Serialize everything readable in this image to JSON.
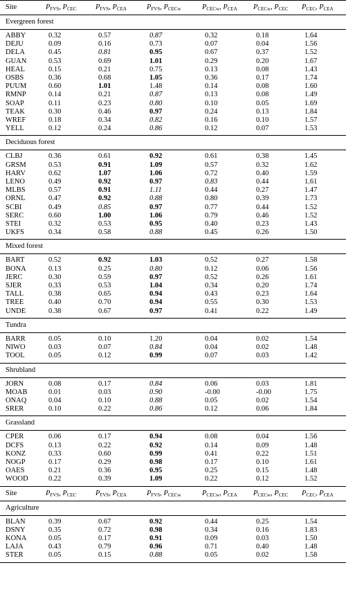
{
  "header": {
    "site": "Site",
    "cols": [
      {
        "a": "FVS",
        "b": "CEC"
      },
      {
        "a": "FVS",
        "b": "CEA"
      },
      {
        "a": "FVS",
        "b": "CECw"
      },
      {
        "a": "CECw",
        "b": "CEA"
      },
      {
        "a": "CECw",
        "b": "CEC"
      },
      {
        "a": "CEC",
        "b": "CEA"
      }
    ]
  },
  "sections": [
    {
      "title": "Evergreen forest",
      "rows": [
        {
          "site": "ABBY",
          "v": [
            "0.32",
            "0.57",
            "0.87",
            "0.32",
            "0.18",
            "1.64"
          ],
          "s": [
            "",
            "",
            "i",
            "",
            "",
            ""
          ]
        },
        {
          "site": "DEJU",
          "v": [
            "0.09",
            "0.16",
            "0.73",
            "0.07",
            "0.04",
            "1.56"
          ],
          "s": [
            "",
            "",
            "",
            "",
            "",
            ""
          ]
        },
        {
          "site": "DELA",
          "v": [
            "0.45",
            "0.81",
            "0.95",
            "0.67",
            "0.37",
            "1.52"
          ],
          "s": [
            "",
            "i",
            "b",
            "",
            "",
            ""
          ]
        },
        {
          "site": "GUAN",
          "v": [
            "0.53",
            "0.69",
            "1.01",
            "0.29",
            "0.20",
            "1.67"
          ],
          "s": [
            "",
            "",
            "b",
            "",
            "",
            ""
          ]
        },
        {
          "site": "HEAL",
          "v": [
            "0.15",
            "0.21",
            "0.75",
            "0.13",
            "0.08",
            "1.43"
          ],
          "s": [
            "",
            "",
            "",
            "",
            "",
            ""
          ]
        },
        {
          "site": "OSBS",
          "v": [
            "0.36",
            "0.68",
            "1.05",
            "0.36",
            "0.17",
            "1.74"
          ],
          "s": [
            "",
            "",
            "b",
            "",
            "",
            ""
          ]
        },
        {
          "site": "PUUM",
          "v": [
            "0.60",
            "1.01",
            "1.48",
            "0.14",
            "0.08",
            "1.60"
          ],
          "s": [
            "",
            "b",
            "",
            "",
            "",
            ""
          ]
        },
        {
          "site": "RMNP",
          "v": [
            "0.14",
            "0.21",
            "0.87",
            "0.13",
            "0.08",
            "1.49"
          ],
          "s": [
            "",
            "",
            "i",
            "",
            "",
            ""
          ]
        },
        {
          "site": "SOAP",
          "v": [
            "0.11",
            "0.23",
            "0.80",
            "0.10",
            "0.05",
            "1.69"
          ],
          "s": [
            "",
            "",
            "i",
            "",
            "",
            ""
          ]
        },
        {
          "site": "TEAK",
          "v": [
            "0.30",
            "0.46",
            "0.97",
            "0.24",
            "0.13",
            "1.84"
          ],
          "s": [
            "",
            "",
            "b",
            "",
            "",
            ""
          ]
        },
        {
          "site": "WREF",
          "v": [
            "0.18",
            "0.34",
            "0.82",
            "0.16",
            "0.10",
            "1.57"
          ],
          "s": [
            "",
            "",
            "i",
            "",
            "",
            ""
          ]
        },
        {
          "site": "YELL",
          "v": [
            "0.12",
            "0.24",
            "0.86",
            "0.12",
            "0.07",
            "1.53"
          ],
          "s": [
            "",
            "",
            "i",
            "",
            "",
            ""
          ]
        }
      ]
    },
    {
      "title": "Deciduous forest",
      "rows": [
        {
          "site": "CLBJ",
          "v": [
            "0.36",
            "0.61",
            "0.92",
            "0.61",
            "0.38",
            "1.45"
          ],
          "s": [
            "",
            "",
            "b",
            "",
            "",
            ""
          ]
        },
        {
          "site": "GRSM",
          "v": [
            "0.53",
            "0.91",
            "1.09",
            "0.57",
            "0.32",
            "1.62"
          ],
          "s": [
            "",
            "b",
            "b",
            "",
            "",
            ""
          ]
        },
        {
          "site": "HARV",
          "v": [
            "0.62",
            "1.07",
            "1.06",
            "0.72",
            "0.40",
            "1.59"
          ],
          "s": [
            "",
            "b",
            "b",
            "",
            "",
            ""
          ]
        },
        {
          "site": "LENO",
          "v": [
            "0.49",
            "0.92",
            "0.97",
            "0.83",
            "0.44",
            "1.61"
          ],
          "s": [
            "",
            "b",
            "b",
            "i",
            "",
            ""
          ]
        },
        {
          "site": "MLBS",
          "v": [
            "0.57",
            "0.91",
            "1.11",
            "0.44",
            "0.27",
            "1.47"
          ],
          "s": [
            "",
            "b",
            "i",
            "",
            "",
            ""
          ]
        },
        {
          "site": "ORNL",
          "v": [
            "0.47",
            "0.92",
            "0.88",
            "0.80",
            "0.39",
            "1.73"
          ],
          "s": [
            "",
            "b",
            "i",
            "",
            "",
            ""
          ]
        },
        {
          "site": "SCBI",
          "v": [
            "0.49",
            "0.85",
            "0.97",
            "0.77",
            "0.44",
            "1.52"
          ],
          "s": [
            "",
            "i",
            "b",
            "",
            "",
            ""
          ]
        },
        {
          "site": "SERC",
          "v": [
            "0.60",
            "1.00",
            "1.06",
            "0.79",
            "0.46",
            "1.52"
          ],
          "s": [
            "",
            "b",
            "b",
            "",
            "",
            ""
          ]
        },
        {
          "site": "STEI",
          "v": [
            "0.32",
            "0.53",
            "0.95",
            "0.40",
            "0.23",
            "1.43"
          ],
          "s": [
            "",
            "",
            "b",
            "",
            "",
            ""
          ]
        },
        {
          "site": "UKFS",
          "v": [
            "0.34",
            "0.58",
            "0.88",
            "0.45",
            "0.26",
            "1.50"
          ],
          "s": [
            "",
            "",
            "i",
            "",
            "",
            ""
          ]
        }
      ]
    },
    {
      "title": "Mixed forest",
      "rows": [
        {
          "site": "BART",
          "v": [
            "0.52",
            "0.92",
            "1.03",
            "0.52",
            "0.27",
            "1.58"
          ],
          "s": [
            "",
            "b",
            "b",
            "",
            "",
            ""
          ]
        },
        {
          "site": "BONA",
          "v": [
            "0.13",
            "0.25",
            "0.80",
            "0.12",
            "0.06",
            "1.56"
          ],
          "s": [
            "",
            "",
            "i",
            "",
            "",
            ""
          ]
        },
        {
          "site": "JERC",
          "v": [
            "0.30",
            "0.59",
            "0.97",
            "0.52",
            "0.26",
            "1.61"
          ],
          "s": [
            "",
            "",
            "b",
            "",
            "",
            ""
          ]
        },
        {
          "site": "SJER",
          "v": [
            "0.33",
            "0.53",
            "1.04",
            "0.34",
            "0.20",
            "1.74"
          ],
          "s": [
            "",
            "",
            "b",
            "",
            "",
            ""
          ]
        },
        {
          "site": "TALL",
          "v": [
            "0.38",
            "0.65",
            "0.94",
            "0.43",
            "0.23",
            "1.64"
          ],
          "s": [
            "",
            "",
            "b",
            "",
            "",
            ""
          ]
        },
        {
          "site": "TREE",
          "v": [
            "0.40",
            "0.70",
            "0.94",
            "0.55",
            "0.30",
            "1.53"
          ],
          "s": [
            "",
            "",
            "b",
            "",
            "",
            ""
          ]
        },
        {
          "site": "UNDE",
          "v": [
            "0.38",
            "0.67",
            "0.97",
            "0.41",
            "0.22",
            "1.49"
          ],
          "s": [
            "",
            "",
            "b",
            "",
            "",
            ""
          ]
        }
      ]
    },
    {
      "title": "Tundra",
      "rows": [
        {
          "site": "BARR",
          "v": [
            "0.05",
            "0.10",
            "1.20",
            "0.04",
            "0.02",
            "1.54"
          ],
          "s": [
            "",
            "",
            "",
            "",
            "",
            ""
          ]
        },
        {
          "site": "NIWO",
          "v": [
            "0.03",
            "0.07",
            "0.84",
            "0.04",
            "0.02",
            "1.48"
          ],
          "s": [
            "",
            "",
            "i",
            "",
            "",
            ""
          ]
        },
        {
          "site": "TOOL",
          "v": [
            "0.05",
            "0.12",
            "0.99",
            "0.07",
            "0.03",
            "1.42"
          ],
          "s": [
            "",
            "",
            "b",
            "",
            "",
            ""
          ]
        }
      ]
    },
    {
      "title": "Shrubland",
      "rows": [
        {
          "site": "JORN",
          "v": [
            "0.08",
            "0.17",
            "0.84",
            "0.06",
            "0.03",
            "1.81"
          ],
          "s": [
            "",
            "",
            "i",
            "",
            "",
            ""
          ]
        },
        {
          "site": "MOAB",
          "v": [
            "0.01",
            "0.03",
            "0.90",
            "-0.00",
            "-0.00",
            "1.75"
          ],
          "s": [
            "",
            "",
            "i",
            "",
            "",
            ""
          ]
        },
        {
          "site": "ONAQ",
          "v": [
            "0.04",
            "0.10",
            "0.88",
            "0.05",
            "0.02",
            "1.54"
          ],
          "s": [
            "",
            "",
            "i",
            "",
            "",
            ""
          ]
        },
        {
          "site": "SRER",
          "v": [
            "0.10",
            "0.22",
            "0.86",
            "0.12",
            "0.06",
            "1.84"
          ],
          "s": [
            "",
            "",
            "i",
            "",
            "",
            ""
          ]
        }
      ]
    },
    {
      "title": "Grassland",
      "rows": [
        {
          "site": "CPER",
          "v": [
            "0.06",
            "0.17",
            "0.94",
            "0.08",
            "0.04",
            "1.56"
          ],
          "s": [
            "",
            "",
            "b",
            "",
            "",
            ""
          ]
        },
        {
          "site": "DCFS",
          "v": [
            "0.13",
            "0.22",
            "0.92",
            "0.14",
            "0.09",
            "1.48"
          ],
          "s": [
            "",
            "",
            "b",
            "",
            "",
            ""
          ]
        },
        {
          "site": "KONZ",
          "v": [
            "0.33",
            "0.60",
            "0.99",
            "0.41",
            "0.22",
            "1.51"
          ],
          "s": [
            "",
            "",
            "b",
            "",
            "",
            ""
          ]
        },
        {
          "site": "NOGP",
          "v": [
            "0.17",
            "0.29",
            "0.98",
            "0.17",
            "0.10",
            "1.61"
          ],
          "s": [
            "",
            "",
            "b",
            "",
            "",
            ""
          ]
        },
        {
          "site": "OAES",
          "v": [
            "0.21",
            "0.36",
            "0.95",
            "0.25",
            "0.15",
            "1.48"
          ],
          "s": [
            "",
            "",
            "b",
            "",
            "",
            ""
          ]
        },
        {
          "site": "WOOD",
          "v": [
            "0.22",
            "0.39",
            "1.09",
            "0.22",
            "0.12",
            "1.52"
          ],
          "s": [
            "",
            "",
            "b",
            "",
            "",
            ""
          ]
        }
      ]
    }
  ],
  "sections2": [
    {
      "title": "Agriculture",
      "rows": [
        {
          "site": "BLAN",
          "v": [
            "0.39",
            "0.67",
            "0.92",
            "0.44",
            "0.25",
            "1.54"
          ],
          "s": [
            "",
            "",
            "b",
            "",
            "",
            ""
          ]
        },
        {
          "site": "DSNY",
          "v": [
            "0.35",
            "0.72",
            "0.98",
            "0.34",
            "0.16",
            "1.83"
          ],
          "s": [
            "",
            "",
            "b",
            "",
            "",
            ""
          ]
        },
        {
          "site": "KONA",
          "v": [
            "0.05",
            "0.17",
            "0.91",
            "0.09",
            "0.03",
            "1.50"
          ],
          "s": [
            "",
            "",
            "b",
            "",
            "",
            ""
          ]
        },
        {
          "site": "LAJA",
          "v": [
            "0.43",
            "0.79",
            "0.96",
            "0.71",
            "0.40",
            "1.48"
          ],
          "s": [
            "",
            "",
            "b",
            "",
            "",
            ""
          ]
        },
        {
          "site": "STER",
          "v": [
            "0.05",
            "0.15",
            "0.88",
            "0.05",
            "0.02",
            "1.58"
          ],
          "s": [
            "",
            "",
            "i",
            "",
            "",
            ""
          ]
        }
      ]
    }
  ]
}
